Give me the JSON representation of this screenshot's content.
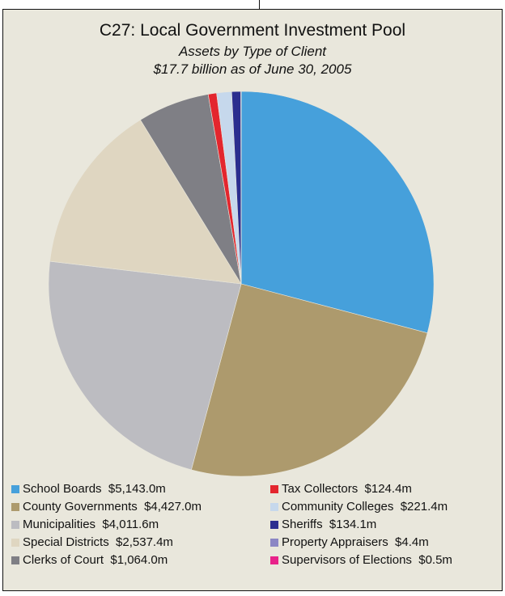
{
  "chart_data": {
    "type": "pie",
    "title": "C27:  Local Government Investment Pool",
    "subtitle": "Assets by Type of Client",
    "subtitle2": "$17.7 billion as of June 30, 2005",
    "slices": [
      {
        "label": "School Boards",
        "value": 5143.0,
        "display": "$5,143.0m",
        "color": "#46a0db"
      },
      {
        "label": "County Governments",
        "value": 4427.0,
        "display": "$4,427.0m",
        "color": "#ad9a6d"
      },
      {
        "label": "Municipalities",
        "value": 4011.6,
        "display": "$4,011.6m",
        "color": "#bcbcc1"
      },
      {
        "label": "Special Districts",
        "value": 2537.4,
        "display": "$2,537.4m",
        "color": "#dfd6c1"
      },
      {
        "label": "Clerks of Court",
        "value": 1064.0,
        "display": "$1,064.0m",
        "color": "#7f7f85"
      },
      {
        "label": "Tax Collectors",
        "value": 124.4,
        "display": "$124.4m",
        "color": "#e3262e"
      },
      {
        "label": "Community Colleges",
        "value": 221.4,
        "display": "$221.4m",
        "color": "#c6d8ec"
      },
      {
        "label": "Sheriffs",
        "value": 134.1,
        "display": "$134.1m",
        "color": "#2b2e8f"
      },
      {
        "label": "Property Appraisers",
        "value": 4.4,
        "display": "$4.4m",
        "color": "#8b86c4"
      },
      {
        "label": "Supervisors of Elections",
        "value": 0.5,
        "display": "$0.5m",
        "color": "#e8228a"
      }
    ],
    "slice_order": [
      0,
      1,
      2,
      3,
      4,
      5,
      6,
      7,
      8,
      9
    ],
    "legend_columns": [
      [
        0,
        1,
        2,
        3,
        4
      ],
      [
        5,
        6,
        7,
        8,
        9
      ]
    ],
    "legend_position": "bottom"
  }
}
